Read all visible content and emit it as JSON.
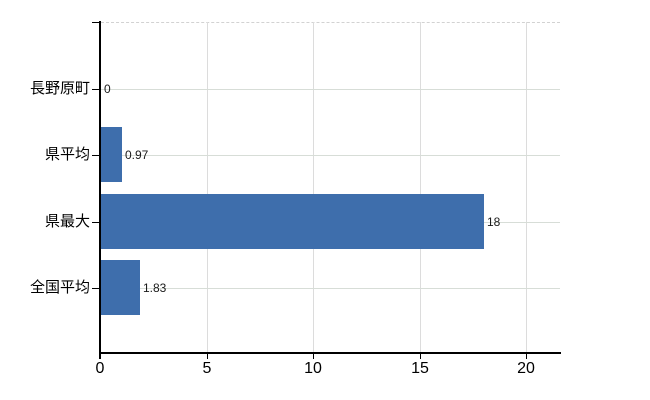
{
  "chart_data": {
    "type": "bar",
    "orientation": "horizontal",
    "title": "",
    "xlabel": "",
    "ylabel": "",
    "categories": [
      "長野原町",
      "県平均",
      "県最大",
      "全国平均"
    ],
    "values": [
      0,
      0.97,
      18,
      1.83
    ],
    "value_labels": [
      "0",
      "0.97",
      "18",
      "1.83"
    ],
    "x_tick_labels": [
      "0",
      "5",
      "10",
      "15",
      "20"
    ],
    "x_tick_values": [
      0,
      5,
      10,
      15,
      20
    ],
    "xlim": [
      0,
      20
    ],
    "grid": true,
    "legend_position": "none",
    "colors": {
      "bar": "#3e6eac",
      "axis": "#000000",
      "gridline_vertical": "#dcdcdc",
      "gridline_horizontal": "#d7ddd7",
      "top_border_dashed": "#d2d2d2",
      "background": "#ffffff",
      "tick_label": "#000000",
      "value_label": "#1a1a1a"
    }
  }
}
